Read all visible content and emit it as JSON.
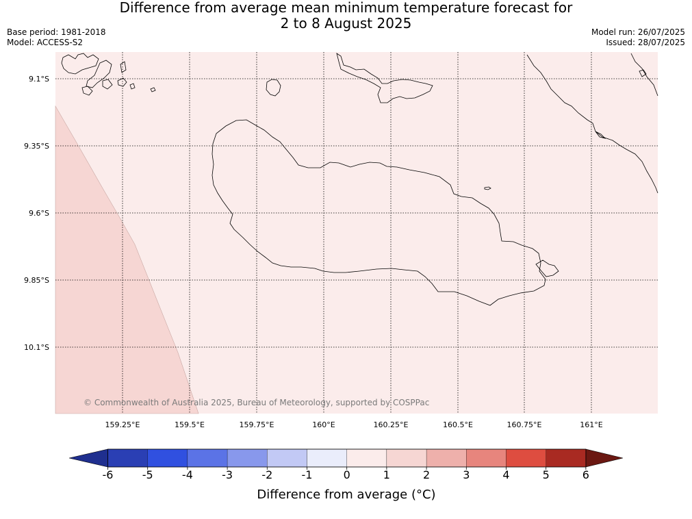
{
  "header": {
    "title_line1": "Difference from average mean minimum temperature forecast for",
    "title_line2": "2 to 8 August 2025",
    "base_period": "Base period: 1981-2018",
    "model": "Model: ACCESS-S2",
    "model_run": "Model run: 26/07/2025",
    "issued": "Issued: 28/07/2025"
  },
  "map": {
    "background_color": "#fbeceb",
    "anomaly_1_2_color": "#f6d6d3",
    "coast_color": "#000000",
    "lat_labels": [
      "9.1°S",
      "9.35°S",
      "9.6°S",
      "9.85°S",
      "10.1°S"
    ],
    "lon_labels": [
      "159.25°E",
      "159.5°E",
      "159.75°E",
      "160°E",
      "160.25°E",
      "160.5°E",
      "160.75°E",
      "161°E"
    ],
    "copyright": "© Commonwealth of Australia 2025, Bureau of Meteorology, supported by COSPPac"
  },
  "colorbar": {
    "title": "Difference from average (°C)",
    "tick_labels": [
      "-6",
      "-5",
      "-4",
      "-3",
      "-2",
      "-1",
      "0",
      "1",
      "2",
      "3",
      "4",
      "5",
      "6"
    ],
    "colors": [
      "#1f2f8f",
      "#2a3fb4",
      "#3050e0",
      "#5b73e6",
      "#8898ec",
      "#c2c9f5",
      "#eaedfb",
      "#fbeceb",
      "#f6d6d3",
      "#eeb0ab",
      "#e7857d",
      "#de4d40",
      "#a92a22",
      "#6b1812"
    ]
  }
}
